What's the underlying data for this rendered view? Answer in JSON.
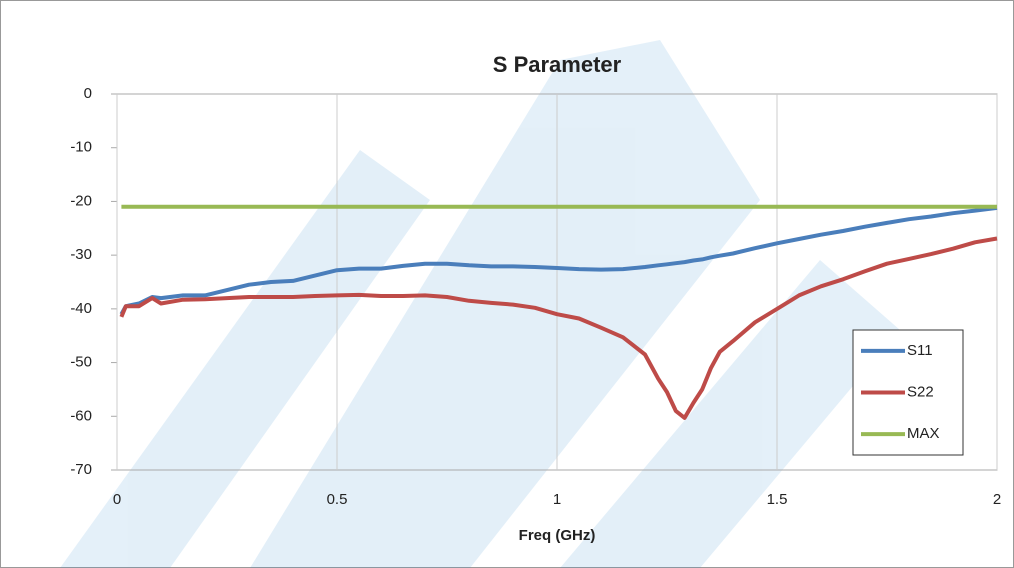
{
  "chart_data": {
    "type": "line",
    "title": "S Parameter",
    "x_label": "Freq (GHz)",
    "x": [
      0.01,
      0.02,
      0.05,
      0.08,
      0.1,
      0.15,
      0.2,
      0.25,
      0.3,
      0.35,
      0.4,
      0.45,
      0.5,
      0.55,
      0.6,
      0.65,
      0.7,
      0.75,
      0.8,
      0.85,
      0.9,
      0.95,
      1.0,
      1.05,
      1.1,
      1.15,
      1.2,
      1.23,
      1.25,
      1.27,
      1.29,
      1.31,
      1.33,
      1.35,
      1.37,
      1.4,
      1.45,
      1.5,
      1.55,
      1.6,
      1.65,
      1.7,
      1.75,
      1.8,
      1.85,
      1.9,
      1.95,
      2.0
    ],
    "series": [
      {
        "name": "S11",
        "color": "#4a7ebb",
        "values": [
          -41,
          -39.5,
          -39,
          -37.8,
          -38,
          -37.5,
          -37.5,
          -36.5,
          -35.5,
          -35,
          -34.8,
          -33.8,
          -32.8,
          -32.5,
          -32.5,
          -32,
          -31.6,
          -31.6,
          -31.9,
          -32.1,
          -32.1,
          -32.2,
          -32.4,
          -32.6,
          -32.7,
          -32.6,
          -32.2,
          -31.9,
          -31.7,
          -31.5,
          -31.3,
          -31.0,
          -30.8,
          -30.4,
          -30.1,
          -29.7,
          -28.7,
          -27.8,
          -27,
          -26.2,
          -25.5,
          -24.7,
          -24,
          -23.3,
          -22.8,
          -22.2,
          -21.7,
          -21.2
        ]
      },
      {
        "name": "S22",
        "color": "#be4b48",
        "values": [
          -41.5,
          -39.5,
          -39.5,
          -38,
          -39,
          -38.3,
          -38.2,
          -38,
          -37.8,
          -37.8,
          -37.8,
          -37.6,
          -37.5,
          -37.4,
          -37.6,
          -37.6,
          -37.5,
          -37.8,
          -38.5,
          -38.9,
          -39.2,
          -39.8,
          -41,
          -41.8,
          -43.5,
          -45.3,
          -48.5,
          -53,
          -55.5,
          -59,
          -60.3,
          -57.5,
          -55,
          -51,
          -48,
          -46,
          -42.5,
          -40,
          -37.5,
          -35.8,
          -34.5,
          -33,
          -31.6,
          -30.7,
          -29.8,
          -28.8,
          -27.6,
          -26.9
        ]
      },
      {
        "name": "MAX",
        "color": "#98b954",
        "values": [
          -21,
          -21,
          -21,
          -21,
          -21,
          -21,
          -21,
          -21,
          -21,
          -21,
          -21,
          -21,
          -21,
          -21,
          -21,
          -21,
          -21,
          -21,
          -21,
          -21,
          -21,
          -21,
          -21,
          -21,
          -21,
          -21,
          -21,
          -21,
          -21,
          -21,
          -21,
          -21,
          -21,
          -21,
          -21,
          -21,
          -21,
          -21,
          -21,
          -21,
          -21,
          -21,
          -21,
          -21,
          -21,
          -21,
          -21,
          -21
        ]
      }
    ],
    "xlim": [
      0,
      2
    ],
    "xticks": [
      0,
      0.5,
      1,
      1.5,
      2
    ],
    "ylim": [
      -70,
      0
    ],
    "yticks": [
      0,
      -10,
      -20,
      -30,
      -40,
      -50,
      -60,
      -70
    ],
    "grid": "x",
    "legend": "lower right"
  }
}
